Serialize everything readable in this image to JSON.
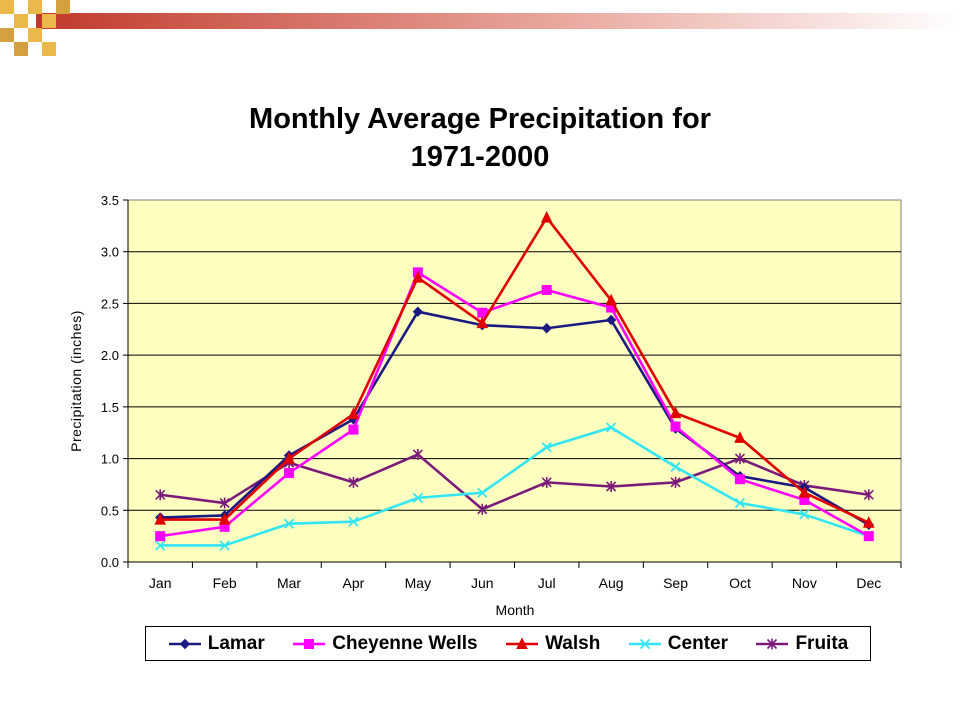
{
  "chart_data": {
    "type": "line",
    "title_lines": [
      "Monthly Average Precipitation for",
      "1971-2000"
    ],
    "xlabel": "Month",
    "ylabel": "Precipitation (inches)",
    "categories": [
      "Jan",
      "Feb",
      "Mar",
      "Apr",
      "May",
      "Jun",
      "Jul",
      "Aug",
      "Sep",
      "Oct",
      "Nov",
      "Dec"
    ],
    "ylim": [
      0,
      3.5
    ],
    "yticks": [
      "0.0",
      "0.5",
      "1.0",
      "1.5",
      "2.0",
      "2.5",
      "3.0",
      "3.5"
    ],
    "grid": true,
    "legend_position": "bottom",
    "plot_background": "#FFFFC0",
    "series": [
      {
        "name": "Lamar",
        "color": "#1A1A80",
        "marker": "diamond",
        "values": [
          0.43,
          0.45,
          1.03,
          1.38,
          2.42,
          2.29,
          2.26,
          2.34,
          1.29,
          0.83,
          0.72,
          0.36
        ]
      },
      {
        "name": "Cheyenne Wells",
        "color": "#FF00FF",
        "marker": "square",
        "values": [
          0.25,
          0.34,
          0.86,
          1.28,
          2.8,
          2.41,
          2.63,
          2.46,
          1.31,
          0.8,
          0.6,
          0.25
        ]
      },
      {
        "name": "Walsh",
        "color": "#E00000",
        "marker": "triangle",
        "values": [
          0.41,
          0.41,
          1.0,
          1.43,
          2.75,
          2.31,
          3.33,
          2.53,
          1.44,
          1.2,
          0.67,
          0.38
        ]
      },
      {
        "name": "Center",
        "color": "#33E5F5",
        "marker": "x",
        "values": [
          0.16,
          0.16,
          0.37,
          0.39,
          0.62,
          0.67,
          1.11,
          1.3,
          0.92,
          0.57,
          0.46,
          0.25
        ]
      },
      {
        "name": "Fruita",
        "color": "#7A1A7A",
        "marker": "star",
        "values": [
          0.65,
          0.57,
          0.96,
          0.77,
          1.04,
          0.51,
          0.77,
          0.73,
          0.77,
          1.0,
          0.74,
          0.65
        ]
      }
    ]
  }
}
